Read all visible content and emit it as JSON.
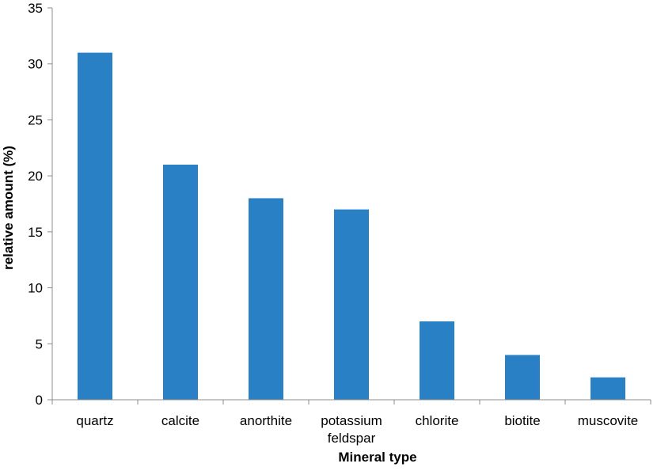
{
  "chart_data": {
    "type": "bar",
    "categories": [
      "quartz",
      "calcite",
      "anorthite",
      "potassium feldspar",
      "chlorite",
      "biotite",
      "muscovite"
    ],
    "category_lines": [
      [
        "quartz"
      ],
      [
        "calcite"
      ],
      [
        "anorthite"
      ],
      [
        "potassium",
        "feldspar"
      ],
      [
        "chlorite"
      ],
      [
        "biotite"
      ],
      [
        "muscovite"
      ]
    ],
    "values": [
      31,
      21,
      18,
      17,
      7,
      4,
      2
    ],
    "title": "",
    "xlabel": "Mineral type",
    "ylabel": "relative amount (%)",
    "ylim": [
      0,
      35
    ],
    "yticks": [
      0,
      5,
      10,
      15,
      20,
      25,
      30,
      35
    ],
    "grid": false,
    "legend": "none",
    "bar_color": "#2a80c4",
    "axis_color": "#8c8c8c"
  }
}
